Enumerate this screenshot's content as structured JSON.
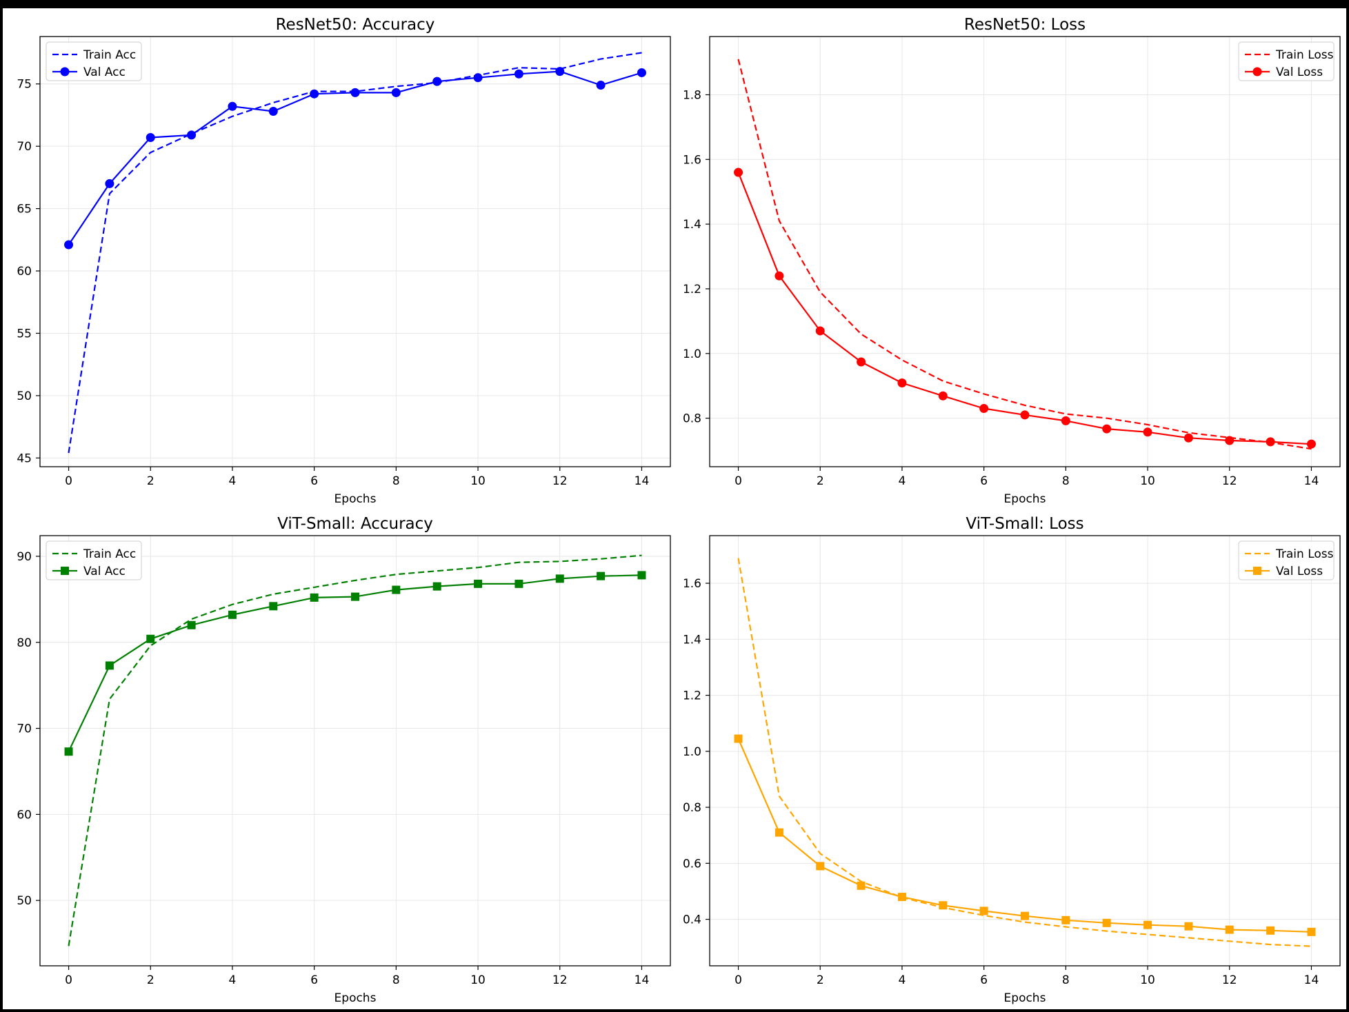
{
  "chart_data": [
    {
      "type": "line",
      "title": "ResNet50: Accuracy",
      "xlabel": "Epochs",
      "ylabel": "",
      "xlim": [
        -0.7,
        14.7
      ],
      "ylim": [
        44.3,
        78.8
      ],
      "xticks": [
        0,
        2,
        4,
        6,
        8,
        10,
        12,
        14
      ],
      "yticks": [
        45,
        50,
        55,
        60,
        65,
        70,
        75
      ],
      "grid": true,
      "legend_position": "top-left",
      "x": [
        0,
        1,
        2,
        3,
        4,
        5,
        6,
        7,
        8,
        9,
        10,
        11,
        12,
        13,
        14
      ],
      "series": [
        {
          "name": "Train Acc",
          "color": "#0000ff",
          "dash": true,
          "marker": "none",
          "values": [
            45.4,
            66.2,
            69.5,
            71.0,
            72.4,
            73.5,
            74.4,
            74.4,
            74.8,
            75.1,
            75.7,
            76.3,
            76.2,
            77.0,
            77.5
          ]
        },
        {
          "name": "Val Acc",
          "color": "#0000ff",
          "dash": false,
          "marker": "circle",
          "values": [
            62.1,
            67.0,
            70.7,
            70.9,
            73.2,
            72.8,
            74.2,
            74.3,
            74.3,
            75.2,
            75.5,
            75.8,
            76.0,
            74.9,
            75.9
          ]
        }
      ]
    },
    {
      "type": "line",
      "title": "ResNet50: Loss",
      "xlabel": "Epochs",
      "ylabel": "",
      "xlim": [
        -0.7,
        14.7
      ],
      "ylim": [
        0.65,
        1.98
      ],
      "xticks": [
        0,
        2,
        4,
        6,
        8,
        10,
        12,
        14
      ],
      "yticks": [
        0.8,
        1.0,
        1.2,
        1.4,
        1.6,
        1.8
      ],
      "grid": true,
      "legend_position": "top-right",
      "x": [
        0,
        1,
        2,
        3,
        4,
        5,
        6,
        7,
        8,
        9,
        10,
        11,
        12,
        13,
        14
      ],
      "series": [
        {
          "name": "Train Loss",
          "color": "#ff0000",
          "dash": true,
          "marker": "none",
          "values": [
            1.91,
            1.41,
            1.19,
            1.06,
            0.98,
            0.915,
            0.875,
            0.84,
            0.813,
            0.8,
            0.78,
            0.755,
            0.74,
            0.725,
            0.705
          ]
        },
        {
          "name": "Val Loss",
          "color": "#ff0000",
          "dash": false,
          "marker": "circle",
          "values": [
            1.56,
            1.24,
            1.07,
            0.974,
            0.909,
            0.869,
            0.83,
            0.81,
            0.792,
            0.767,
            0.757,
            0.739,
            0.731,
            0.727,
            0.72
          ]
        }
      ]
    },
    {
      "type": "line",
      "title": "ViT-Small: Accuracy",
      "xlabel": "Epochs",
      "ylabel": "",
      "xlim": [
        -0.7,
        14.7
      ],
      "ylim": [
        42.4,
        92.4
      ],
      "xticks": [
        0,
        2,
        4,
        6,
        8,
        10,
        12,
        14
      ],
      "yticks": [
        50,
        60,
        70,
        80,
        90
      ],
      "grid": true,
      "legend_position": "top-left",
      "x": [
        0,
        1,
        2,
        3,
        4,
        5,
        6,
        7,
        8,
        9,
        10,
        11,
        12,
        13,
        14
      ],
      "series": [
        {
          "name": "Train Acc",
          "color": "#008000",
          "dash": true,
          "marker": "none",
          "values": [
            44.7,
            73.4,
            79.6,
            82.7,
            84.4,
            85.6,
            86.4,
            87.2,
            87.9,
            88.3,
            88.7,
            89.3,
            89.4,
            89.7,
            90.1
          ]
        },
        {
          "name": "Val Acc",
          "color": "#008000",
          "dash": false,
          "marker": "square",
          "values": [
            67.3,
            77.3,
            80.4,
            82.0,
            83.2,
            84.2,
            85.2,
            85.3,
            86.1,
            86.5,
            86.8,
            86.8,
            87.4,
            87.7,
            87.8
          ]
        }
      ]
    },
    {
      "type": "line",
      "title": "ViT-Small: Loss",
      "xlabel": "Epochs",
      "ylabel": "",
      "xlim": [
        -0.7,
        14.7
      ],
      "ylim": [
        0.234,
        1.77
      ],
      "xticks": [
        0,
        2,
        4,
        6,
        8,
        10,
        12,
        14
      ],
      "yticks": [
        0.4,
        0.6,
        0.8,
        1.0,
        1.2,
        1.4,
        1.6
      ],
      "grid": true,
      "legend_position": "top-right",
      "x": [
        0,
        1,
        2,
        3,
        4,
        5,
        6,
        7,
        8,
        9,
        10,
        11,
        12,
        13,
        14
      ],
      "series": [
        {
          "name": "Train Loss",
          "color": "#ffa500",
          "dash": true,
          "marker": "none",
          "values": [
            1.69,
            0.84,
            0.635,
            0.535,
            0.478,
            0.442,
            0.414,
            0.39,
            0.373,
            0.358,
            0.346,
            0.334,
            0.322,
            0.31,
            0.304
          ]
        },
        {
          "name": "Val Loss",
          "color": "#ffa500",
          "dash": false,
          "marker": "square",
          "values": [
            1.045,
            0.71,
            0.59,
            0.52,
            0.48,
            0.45,
            0.43,
            0.412,
            0.397,
            0.387,
            0.38,
            0.375,
            0.363,
            0.36,
            0.355
          ]
        }
      ]
    }
  ]
}
